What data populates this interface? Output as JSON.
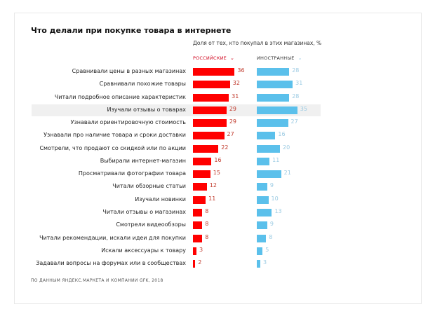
{
  "chart_data": {
    "type": "bar",
    "orientation": "horizontal",
    "title": "Что делали при покупке товара в интернете",
    "subtitle": "Доля от тех, кто покупал в этих магазинах, %",
    "categories": [
      "Сравнивали цены в разных магазинах",
      "Сравнивали похожие товары",
      "Читали подробное описание характеристик",
      "Изучали отзывы о товарах",
      "Узнавали ориентировочную стоимость",
      "Узнавали про наличие товара и сроки доставки",
      "Смотрели, что продают со скидкой или по акции",
      "Выбирали интернет-магазин",
      "Просматривали фотографии товара",
      "Читали обзорные статьи",
      "Изучали новинки",
      "Читали отзывы о магазинах",
      "Смотрели видеообзоры",
      "Читали рекомендации, искали идеи для покупки",
      "Искали аксессуары к товару",
      "Задавали вопросы на форумах или в сообществах"
    ],
    "series": [
      {
        "name": "РОССИЙСКИЕ",
        "color": "#ff0000",
        "label_color": "#c0392b",
        "values": [
          36,
          32,
          31,
          29,
          29,
          27,
          22,
          16,
          15,
          12,
          11,
          8,
          8,
          8,
          3,
          2
        ]
      },
      {
        "name": "ИНОСТРАННЫЕ",
        "color": "#5bc0eb",
        "label_color": "#9ccbe3",
        "values": [
          28,
          31,
          28,
          35,
          27,
          16,
          20,
          11,
          21,
          9,
          10,
          13,
          9,
          8,
          5,
          3
        ]
      }
    ],
    "highlighted_category": "Изучали отзывы о товарах",
    "source": "ПО ДАННЫМ ЯНДЕКС.МАРКЕТА И КОМПАНИИ GFK, 2018"
  }
}
